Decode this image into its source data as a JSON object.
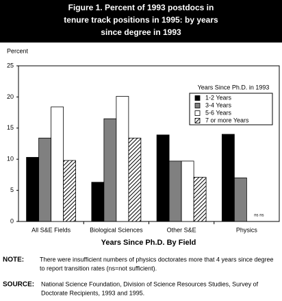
{
  "chart_data": {
    "type": "bar",
    "title": [
      "Figure 1.  Percent of 1993 postdocs in",
      "tenure track positions in 1995: by years",
      "since degree in 1993"
    ],
    "y_label": "Percent",
    "x_label": "Years Since Ph.D. By Field",
    "categories": [
      "All S&E Fields",
      "Biological Sciences",
      "Other S&E",
      "Physics"
    ],
    "legend_title": "Years Since Ph.D. in 1993",
    "series": [
      {
        "name": "1-2 Years",
        "color": "#000000",
        "values": [
          10.3,
          6.3,
          13.9,
          14.0
        ]
      },
      {
        "name": "3-4 Years",
        "color": "#808080",
        "values": [
          13.4,
          16.5,
          9.7,
          7.0
        ]
      },
      {
        "name": "5-6 Years",
        "color": "#ffffff",
        "values": [
          18.4,
          20.1,
          9.7,
          null
        ]
      },
      {
        "name": "7 or more Years",
        "color": "#000000",
        "pattern": "hatch",
        "values": [
          9.8,
          13.4,
          7.1,
          null
        ]
      }
    ],
    "annotation": "ns ns",
    "ylim": [
      0,
      25
    ],
    "yticks": [
      0,
      5,
      10,
      15,
      20,
      25
    ],
    "grid": false
  },
  "notes": [
    {
      "label": "NOTE:",
      "lines": [
        "There were insufficient numbers of physics doctorates more that 4 years  since degree",
        "to report transition rates (ns=not sufficient)."
      ]
    },
    {
      "label": "SOURCE:",
      "lines": [
        "National Science Foundation, Division of Science Resources Studies, Survey of",
        "Doctorate  Recipients, 1993 and 1995."
      ]
    }
  ]
}
